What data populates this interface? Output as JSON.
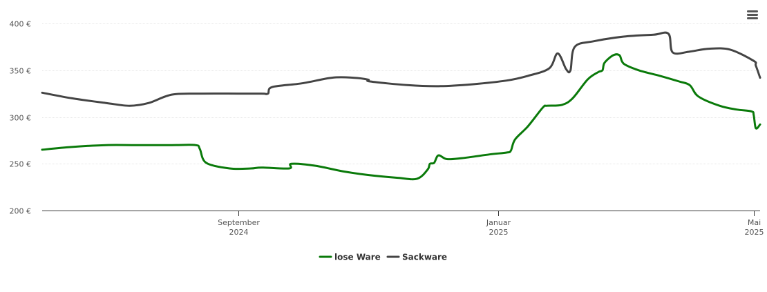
{
  "chart_data": {
    "type": "line",
    "title": "",
    "xlabel": "",
    "ylabel": "",
    "ylim": [
      200,
      400
    ],
    "xlim": [
      "2024-06-01",
      "2025-05-04"
    ],
    "y_ticks": [
      {
        "value": 200,
        "label": "200 €"
      },
      {
        "value": 250,
        "label": "250 €"
      },
      {
        "value": 300,
        "label": "300 €"
      },
      {
        "value": 350,
        "label": "350 €"
      },
      {
        "value": 400,
        "label": "400 €"
      }
    ],
    "x_ticks": [
      {
        "date": "2024-09-01",
        "line1": "September",
        "line2": "2024"
      },
      {
        "date": "2025-01-01",
        "line1": "Januar",
        "line2": "2025"
      },
      {
        "date": "2025-05-01",
        "line1": "Mai",
        "line2": "2025"
      }
    ],
    "grid": true,
    "legend_position": "bottom-center",
    "series": [
      {
        "name": "lose Ware",
        "color": "#0a7a0a",
        "points": [
          [
            "2024-06-01",
            265
          ],
          [
            "2024-06-15",
            268
          ],
          [
            "2024-07-01",
            270
          ],
          [
            "2024-07-15",
            270
          ],
          [
            "2024-08-01",
            270
          ],
          [
            "2024-08-12",
            270
          ],
          [
            "2024-08-14",
            266
          ],
          [
            "2024-08-17",
            251
          ],
          [
            "2024-08-28",
            245
          ],
          [
            "2024-09-07",
            245
          ],
          [
            "2024-09-12",
            246
          ],
          [
            "2024-09-25",
            245
          ],
          [
            "2024-09-26",
            250
          ],
          [
            "2024-10-07",
            248
          ],
          [
            "2024-10-20",
            242
          ],
          [
            "2024-11-01",
            238
          ],
          [
            "2024-11-15",
            235
          ],
          [
            "2024-11-24",
            234
          ],
          [
            "2024-11-29",
            244
          ],
          [
            "2024-11-30",
            250
          ],
          [
            "2024-12-02",
            251
          ],
          [
            "2024-12-04",
            259
          ],
          [
            "2024-12-08",
            255
          ],
          [
            "2024-12-15",
            256
          ],
          [
            "2024-12-28",
            260
          ],
          [
            "2025-01-05",
            262
          ],
          [
            "2025-01-07",
            264
          ],
          [
            "2025-01-09",
            276
          ],
          [
            "2025-01-15",
            290
          ],
          [
            "2025-01-22",
            310
          ],
          [
            "2025-01-24",
            312
          ],
          [
            "2025-01-31",
            313
          ],
          [
            "2025-02-05",
            320
          ],
          [
            "2025-02-12",
            340
          ],
          [
            "2025-02-17",
            348
          ],
          [
            "2025-02-19",
            350
          ],
          [
            "2025-02-20",
            358
          ],
          [
            "2025-02-24",
            366
          ],
          [
            "2025-02-27",
            366
          ],
          [
            "2025-03-01",
            357
          ],
          [
            "2025-03-08",
            350
          ],
          [
            "2025-03-18",
            344
          ],
          [
            "2025-03-27",
            338
          ],
          [
            "2025-04-01",
            334
          ],
          [
            "2025-04-05",
            322
          ],
          [
            "2025-04-15",
            312
          ],
          [
            "2025-04-23",
            308
          ],
          [
            "2025-04-30",
            306
          ],
          [
            "2025-05-01",
            302
          ],
          [
            "2025-05-02",
            288
          ],
          [
            "2025-05-04",
            292
          ]
        ]
      },
      {
        "name": "Sackware",
        "color": "#444444",
        "points": [
          [
            "2024-06-01",
            326
          ],
          [
            "2024-06-15",
            320
          ],
          [
            "2024-07-01",
            315
          ],
          [
            "2024-07-12",
            312
          ],
          [
            "2024-07-21",
            315
          ],
          [
            "2024-08-01",
            324
          ],
          [
            "2024-08-15",
            325
          ],
          [
            "2024-09-01",
            325
          ],
          [
            "2024-09-12",
            325
          ],
          [
            "2024-09-15",
            325
          ],
          [
            "2024-09-17",
            332
          ],
          [
            "2024-10-01",
            336
          ],
          [
            "2024-10-15",
            342
          ],
          [
            "2024-10-25",
            342
          ],
          [
            "2024-11-01",
            340
          ],
          [
            "2024-11-02",
            338
          ],
          [
            "2024-11-20",
            334
          ],
          [
            "2024-12-05",
            333
          ],
          [
            "2024-12-20",
            335
          ],
          [
            "2025-01-05",
            339
          ],
          [
            "2025-01-15",
            344
          ],
          [
            "2025-01-25",
            352
          ],
          [
            "2025-01-29",
            368
          ],
          [
            "2025-02-02",
            351
          ],
          [
            "2025-02-04",
            350
          ],
          [
            "2025-02-06",
            375
          ],
          [
            "2025-02-15",
            381
          ],
          [
            "2025-03-01",
            386
          ],
          [
            "2025-03-15",
            388
          ],
          [
            "2025-03-22",
            389
          ],
          [
            "2025-03-24",
            369
          ],
          [
            "2025-04-01",
            370
          ],
          [
            "2025-04-10",
            373
          ],
          [
            "2025-04-20",
            372
          ],
          [
            "2025-05-01",
            360
          ],
          [
            "2025-05-02",
            355
          ],
          [
            "2025-05-04",
            342
          ]
        ]
      }
    ]
  }
}
